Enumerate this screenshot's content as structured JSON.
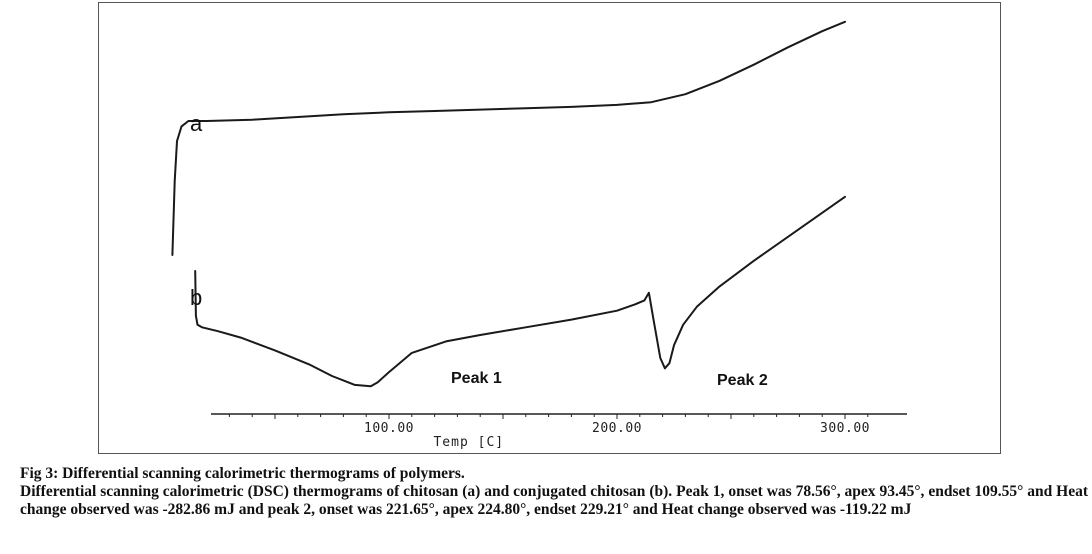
{
  "chart_data": {
    "type": "line",
    "title": "",
    "xlabel": "Temp [C]",
    "ylabel": "",
    "xlim": [
      0,
      305
    ],
    "x_ticks": [
      {
        "value": 100,
        "label": "100.00"
      },
      {
        "value": 200,
        "label": "200.00"
      },
      {
        "value": 300,
        "label": "300.00"
      }
    ],
    "grid": false,
    "series": [
      {
        "name": "a",
        "x": [
          5,
          6,
          7,
          9,
          12,
          20,
          40,
          60,
          80,
          100,
          120,
          140,
          160,
          180,
          200,
          215,
          230,
          245,
          260,
          275,
          290,
          300
        ],
        "y": [
          0.0,
          0.55,
          0.85,
          0.96,
          1.0,
          1.0,
          1.01,
          1.03,
          1.05,
          1.065,
          1.075,
          1.085,
          1.095,
          1.105,
          1.12,
          1.14,
          1.2,
          1.3,
          1.42,
          1.55,
          1.67,
          1.74
        ]
      },
      {
        "name": "b",
        "x": [
          15,
          15.3,
          16,
          18,
          25,
          35,
          50,
          65,
          75,
          85,
          92,
          95,
          100,
          110,
          125,
          140,
          160,
          180,
          200,
          208,
          212,
          214,
          216,
          219,
          221,
          223,
          225,
          229,
          235,
          245,
          260,
          280,
          300
        ],
        "y": [
          0.0,
          -0.35,
          -0.42,
          -0.44,
          -0.47,
          -0.52,
          -0.62,
          -0.73,
          -0.82,
          -0.89,
          -0.9,
          -0.87,
          -0.79,
          -0.64,
          -0.55,
          -0.5,
          -0.44,
          -0.38,
          -0.31,
          -0.26,
          -0.23,
          -0.17,
          -0.38,
          -0.68,
          -0.76,
          -0.72,
          -0.58,
          -0.42,
          -0.28,
          -0.12,
          0.08,
          0.33,
          0.58
        ]
      }
    ],
    "annotations": [
      {
        "text": "Peak 1",
        "x": 100,
        "y": -0.8
      },
      {
        "text": "Peak 2",
        "x": 230,
        "y": -0.8
      }
    ]
  },
  "caption": {
    "title": "Fig 3: Differential scanning calorimetric thermograms of polymers.",
    "body": "Differential scanning calorimetric (DSC) thermograms of chitosan (a) and conjugated chitosan (b). Peak 1, onset was 78.56°, apex 93.45°, endset 109.55° and Heat change observed was -282.86 mJ and peak 2, onset was 221.65°, apex 224.80°, endset 229.21° and Heat change observed was -119.22 mJ"
  }
}
